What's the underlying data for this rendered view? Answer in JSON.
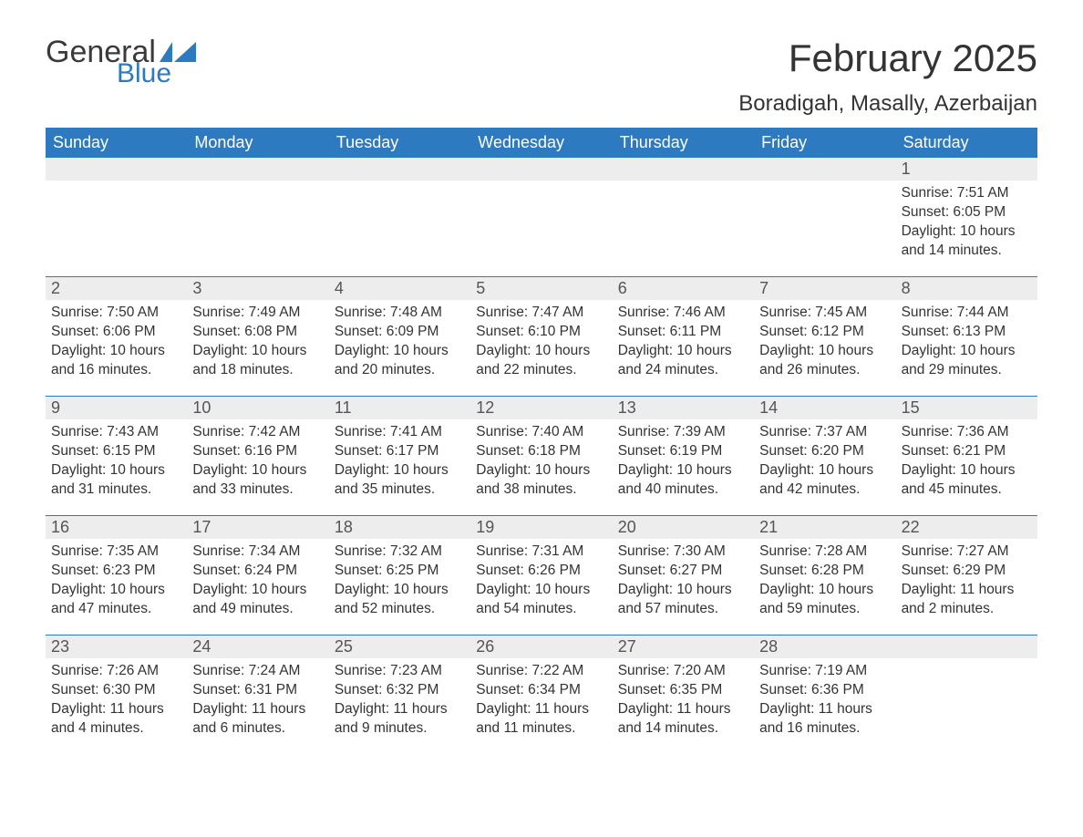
{
  "logo": {
    "text_general": "General",
    "text_blue": "Blue",
    "color_general": "#3a3a3a",
    "color_blue": "#2d7ac0",
    "flag_color": "#2d7ac0"
  },
  "header": {
    "month_title": "February 2025",
    "location": "Boradigah, Masally, Azerbaijan",
    "title_fontsize": 42,
    "location_fontsize": 24
  },
  "colors": {
    "header_bg": "#2d7ac0",
    "header_text": "#ffffff",
    "daynum_bg": "#ededed",
    "daynum_text": "#555555",
    "body_text": "#333333",
    "row_border": "#2d7ac0",
    "page_bg": "#ffffff"
  },
  "weekdays": [
    "Sunday",
    "Monday",
    "Tuesday",
    "Wednesday",
    "Thursday",
    "Friday",
    "Saturday"
  ],
  "labels": {
    "sunrise": "Sunrise:",
    "sunset": "Sunset:",
    "daylight": "Daylight:"
  },
  "weeks": [
    [
      {
        "empty": true
      },
      {
        "empty": true
      },
      {
        "empty": true
      },
      {
        "empty": true
      },
      {
        "empty": true
      },
      {
        "empty": true
      },
      {
        "day": "1",
        "sunrise": "7:51 AM",
        "sunset": "6:05 PM",
        "daylight": "10 hours and 14 minutes."
      }
    ],
    [
      {
        "day": "2",
        "sunrise": "7:50 AM",
        "sunset": "6:06 PM",
        "daylight": "10 hours and 16 minutes."
      },
      {
        "day": "3",
        "sunrise": "7:49 AM",
        "sunset": "6:08 PM",
        "daylight": "10 hours and 18 minutes."
      },
      {
        "day": "4",
        "sunrise": "7:48 AM",
        "sunset": "6:09 PM",
        "daylight": "10 hours and 20 minutes."
      },
      {
        "day": "5",
        "sunrise": "7:47 AM",
        "sunset": "6:10 PM",
        "daylight": "10 hours and 22 minutes."
      },
      {
        "day": "6",
        "sunrise": "7:46 AM",
        "sunset": "6:11 PM",
        "daylight": "10 hours and 24 minutes."
      },
      {
        "day": "7",
        "sunrise": "7:45 AM",
        "sunset": "6:12 PM",
        "daylight": "10 hours and 26 minutes."
      },
      {
        "day": "8",
        "sunrise": "7:44 AM",
        "sunset": "6:13 PM",
        "daylight": "10 hours and 29 minutes."
      }
    ],
    [
      {
        "day": "9",
        "sunrise": "7:43 AM",
        "sunset": "6:15 PM",
        "daylight": "10 hours and 31 minutes."
      },
      {
        "day": "10",
        "sunrise": "7:42 AM",
        "sunset": "6:16 PM",
        "daylight": "10 hours and 33 minutes."
      },
      {
        "day": "11",
        "sunrise": "7:41 AM",
        "sunset": "6:17 PM",
        "daylight": "10 hours and 35 minutes."
      },
      {
        "day": "12",
        "sunrise": "7:40 AM",
        "sunset": "6:18 PM",
        "daylight": "10 hours and 38 minutes."
      },
      {
        "day": "13",
        "sunrise": "7:39 AM",
        "sunset": "6:19 PM",
        "daylight": "10 hours and 40 minutes."
      },
      {
        "day": "14",
        "sunrise": "7:37 AM",
        "sunset": "6:20 PM",
        "daylight": "10 hours and 42 minutes."
      },
      {
        "day": "15",
        "sunrise": "7:36 AM",
        "sunset": "6:21 PM",
        "daylight": "10 hours and 45 minutes."
      }
    ],
    [
      {
        "day": "16",
        "sunrise": "7:35 AM",
        "sunset": "6:23 PM",
        "daylight": "10 hours and 47 minutes."
      },
      {
        "day": "17",
        "sunrise": "7:34 AM",
        "sunset": "6:24 PM",
        "daylight": "10 hours and 49 minutes."
      },
      {
        "day": "18",
        "sunrise": "7:32 AM",
        "sunset": "6:25 PM",
        "daylight": "10 hours and 52 minutes."
      },
      {
        "day": "19",
        "sunrise": "7:31 AM",
        "sunset": "6:26 PM",
        "daylight": "10 hours and 54 minutes."
      },
      {
        "day": "20",
        "sunrise": "7:30 AM",
        "sunset": "6:27 PM",
        "daylight": "10 hours and 57 minutes."
      },
      {
        "day": "21",
        "sunrise": "7:28 AM",
        "sunset": "6:28 PM",
        "daylight": "10 hours and 59 minutes."
      },
      {
        "day": "22",
        "sunrise": "7:27 AM",
        "sunset": "6:29 PM",
        "daylight": "11 hours and 2 minutes."
      }
    ],
    [
      {
        "day": "23",
        "sunrise": "7:26 AM",
        "sunset": "6:30 PM",
        "daylight": "11 hours and 4 minutes."
      },
      {
        "day": "24",
        "sunrise": "7:24 AM",
        "sunset": "6:31 PM",
        "daylight": "11 hours and 6 minutes."
      },
      {
        "day": "25",
        "sunrise": "7:23 AM",
        "sunset": "6:32 PM",
        "daylight": "11 hours and 9 minutes."
      },
      {
        "day": "26",
        "sunrise": "7:22 AM",
        "sunset": "6:34 PM",
        "daylight": "11 hours and 11 minutes."
      },
      {
        "day": "27",
        "sunrise": "7:20 AM",
        "sunset": "6:35 PM",
        "daylight": "11 hours and 14 minutes."
      },
      {
        "day": "28",
        "sunrise": "7:19 AM",
        "sunset": "6:36 PM",
        "daylight": "11 hours and 16 minutes."
      },
      {
        "empty": true
      }
    ]
  ]
}
